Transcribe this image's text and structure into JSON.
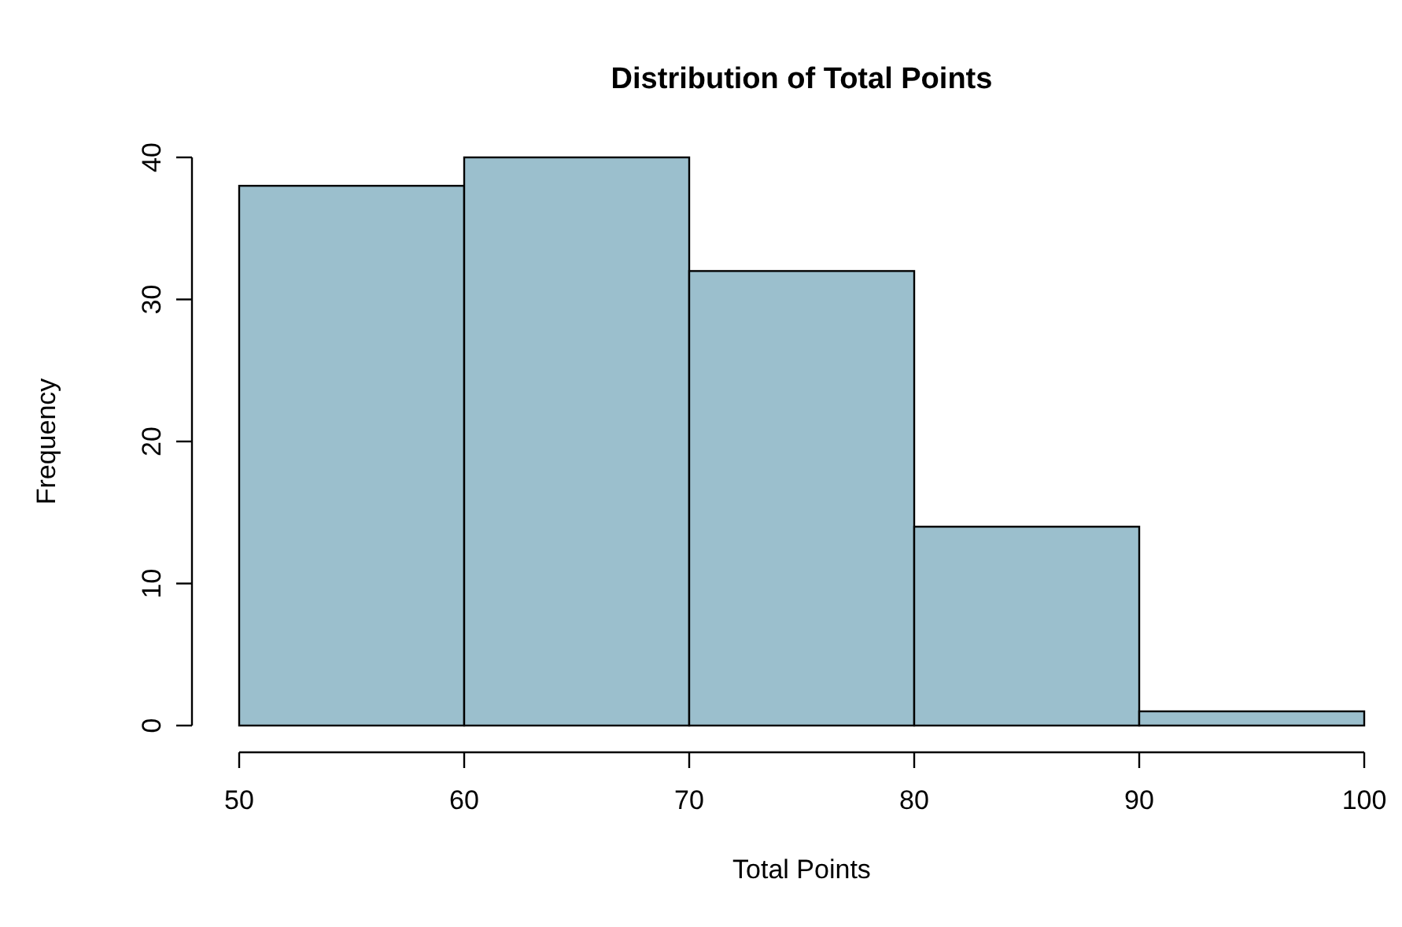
{
  "chart_data": {
    "type": "histogram",
    "title": "Distribution of Total Points",
    "xlabel": "Total Points",
    "ylabel": "Frequency",
    "bins": [
      50,
      60,
      70,
      80,
      90,
      100
    ],
    "values": [
      38,
      40,
      32,
      14,
      1
    ],
    "color": "#9bbfcd",
    "xlim": [
      50,
      100
    ],
    "xticks": [
      50,
      60,
      70,
      80,
      90,
      100
    ],
    "ylim": [
      0,
      40
    ],
    "yticks": [
      0,
      10,
      20,
      30,
      40
    ],
    "grid": false
  }
}
